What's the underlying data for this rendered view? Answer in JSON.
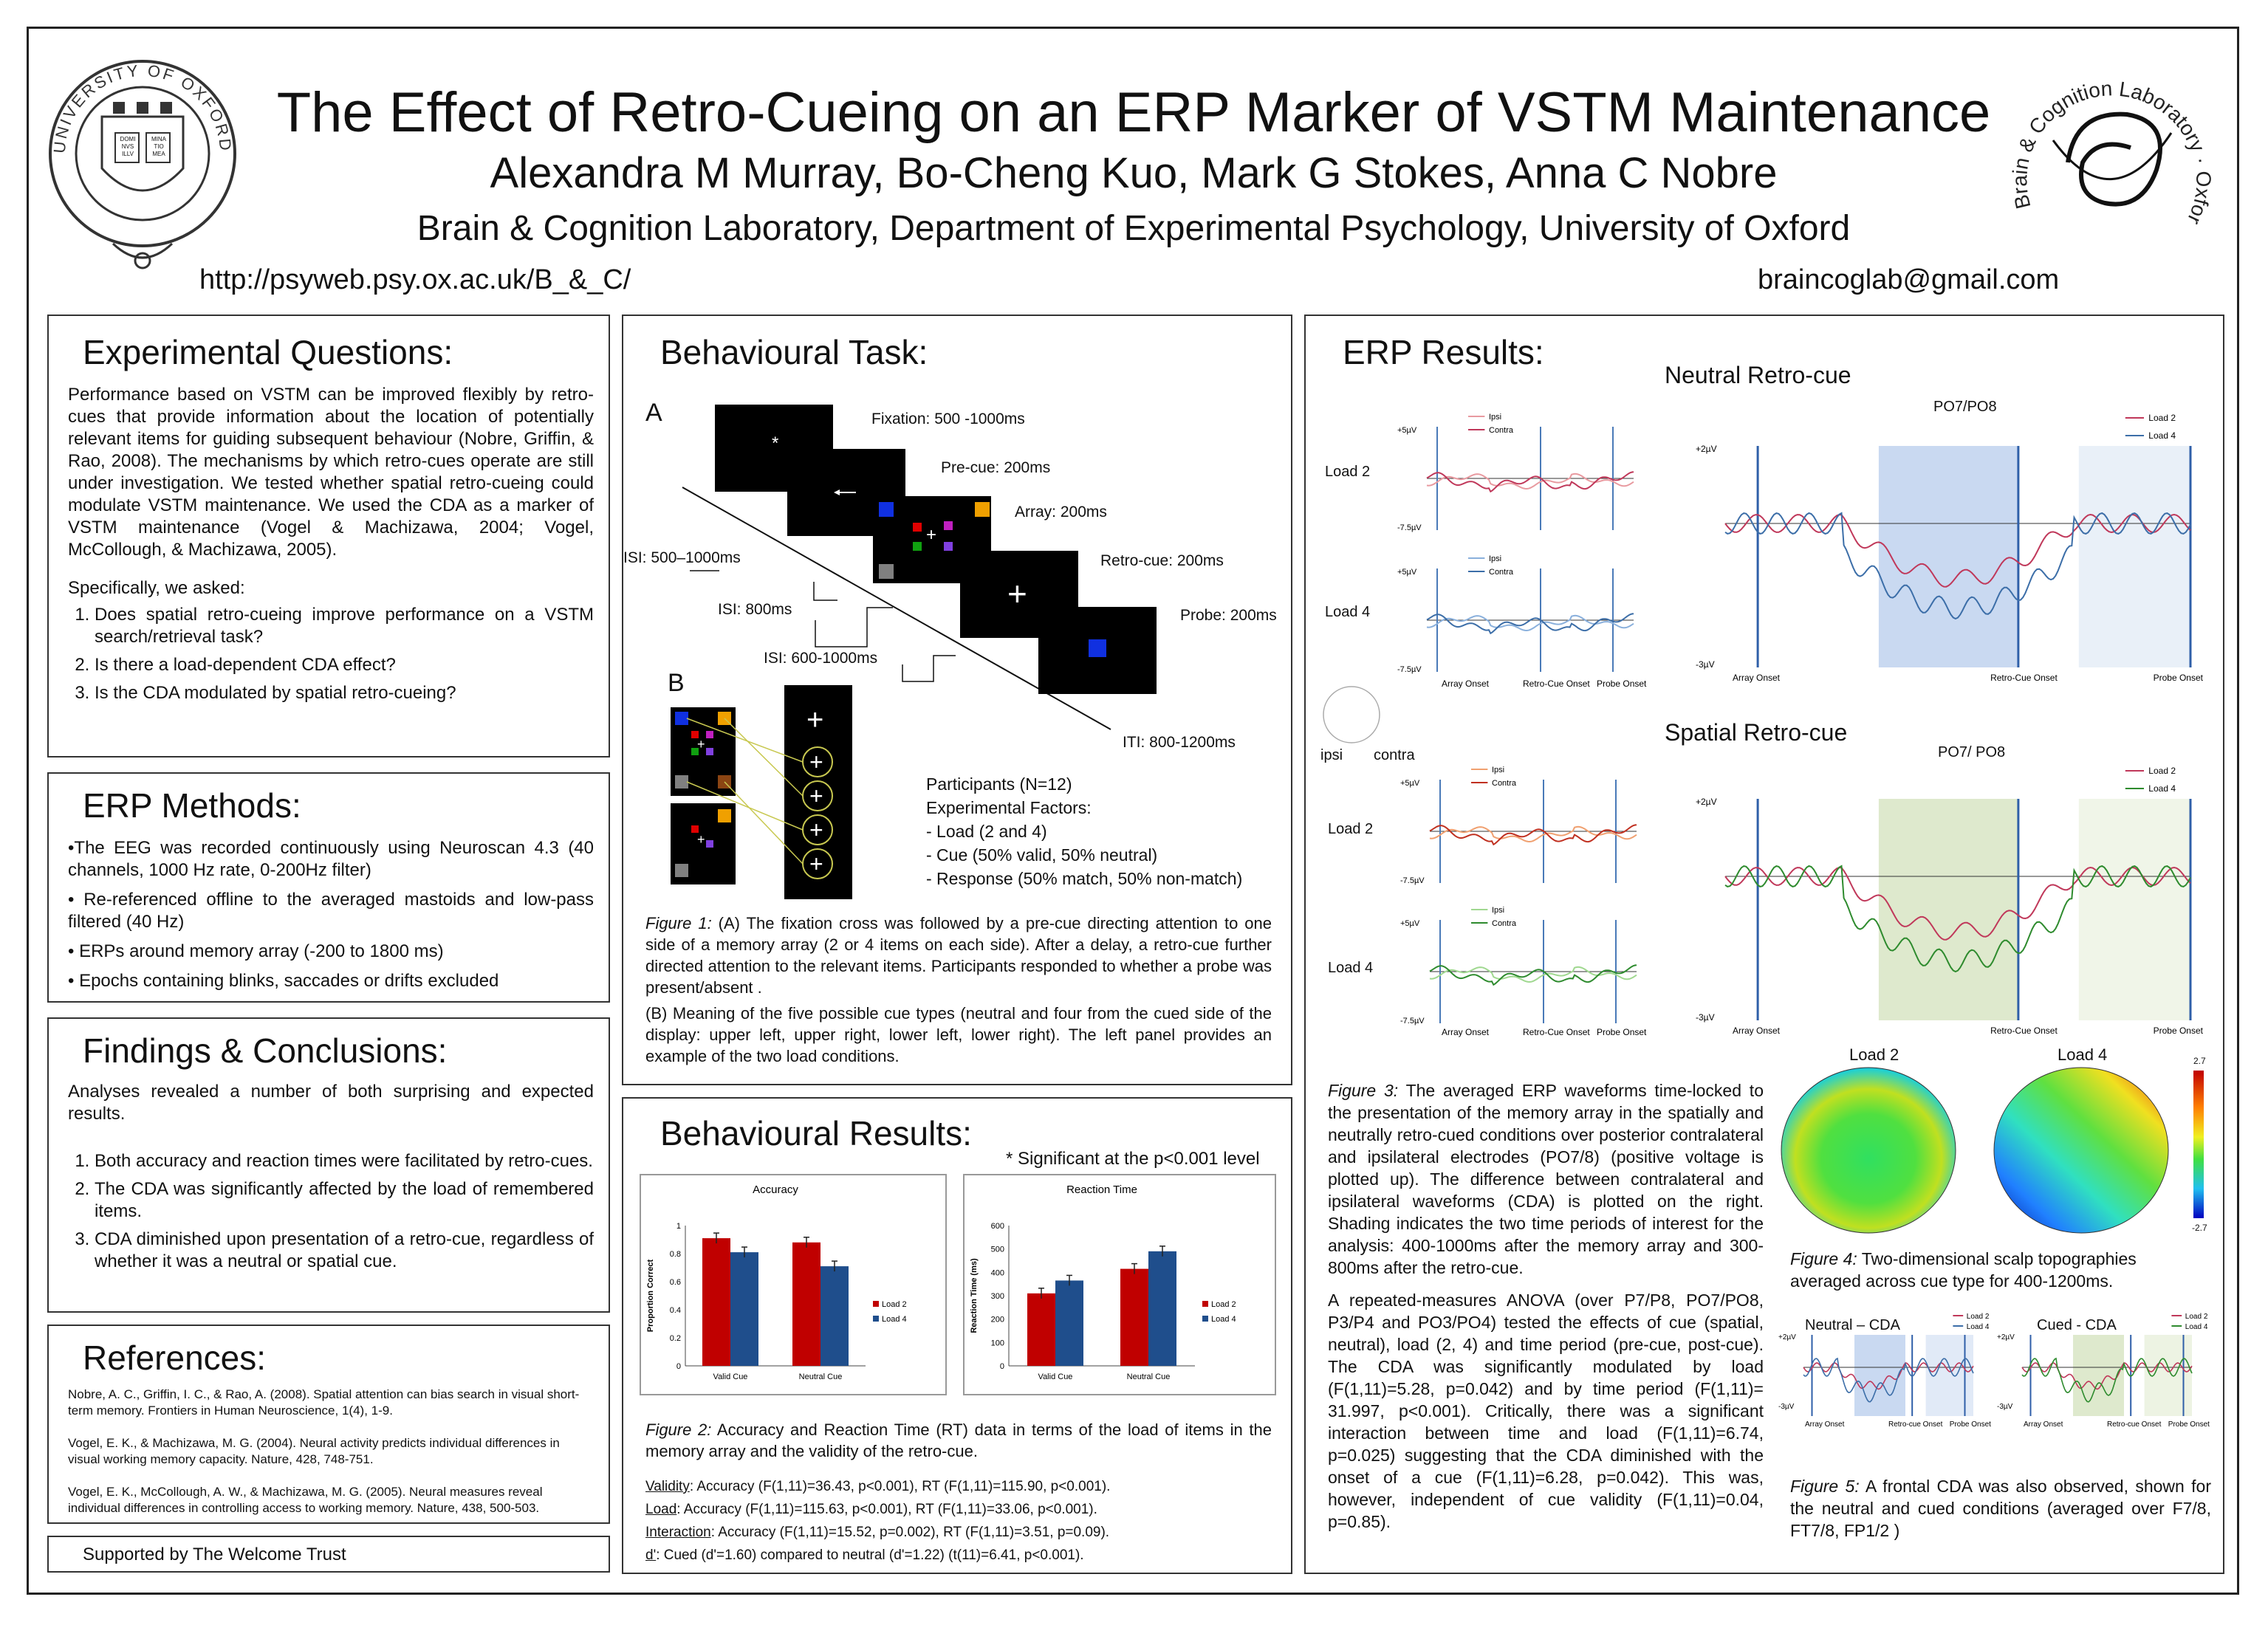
{
  "header": {
    "title": "The Effect of Retro-Cueing on an ERP Marker of VSTM Maintenance",
    "authors": "Alexandra M Murray, Bo-Cheng Kuo, Mark G Stokes, Anna C Nobre",
    "affiliation": "Brain & Cognition Laboratory, Department of Experimental Psychology, University of Oxford",
    "url": "http://psyweb.psy.ox.ac.uk/B_&_C/",
    "email": "braincoglab@gmail.com",
    "oxford_seal_text": "UNIVERSITY OF OXFORD",
    "oxford_book_left": "DOMI NVS ILLV",
    "oxford_book_right": "MINA TIO MEA",
    "lab_logo_text": "Brain & Cognition Laboratory · Oxford University"
  },
  "experimental_questions": {
    "title": "Experimental Questions:",
    "body": "Performance based on VSTM can be improved flexibly by retro-cues that provide information about the location of potentially relevant items for guiding subsequent behaviour (Nobre, Griffin, & Rao, 2008). The mechanisms by which retro-cues operate are still under investigation. We tested whether spatial retro-cueing could modulate VSTM maintenance. We used the CDA as a marker of VSTM maintenance (Vogel & Machizawa, 2004; Vogel, McCollough, & Machizawa, 2005).",
    "asked": "Specifically, we asked:",
    "questions": [
      "Does spatial retro-cueing improve performance on a VSTM search/retrieval task?",
      "Is there a load-dependent CDA effect?",
      "Is the CDA modulated by spatial retro-cueing?"
    ]
  },
  "erp_methods": {
    "title": "ERP Methods:",
    "items": [
      "•The EEG was recorded continuously using Neuroscan 4.3 (40 channels, 1000 Hz rate, 0-200Hz filter)",
      "• Re-referenced offline to the averaged mastoids and low-pass filtered (40 Hz)",
      "• ERPs around memory array (-200 to 1800 ms)",
      "• Epochs containing blinks, saccades or drifts excluded"
    ]
  },
  "findings": {
    "title": "Findings & Conclusions:",
    "intro": "Analyses revealed a number of both surprising and expected results.",
    "items": [
      "Both accuracy and reaction times were facilitated by retro-cues.",
      "The CDA was significantly affected by the load of remembered items.",
      "CDA diminished upon presentation of a retro-cue, regardless of whether it was a neutral or spatial cue."
    ]
  },
  "references": {
    "title": "References:",
    "items": [
      "Nobre, A. C., Griffin, I. C., & Rao, A. (2008). Spatial attention can bias search in visual short-term memory. Frontiers in Human Neuroscience, 1(4), 1-9.",
      "Vogel, E. K., & Machizawa, M. G. (2004). Neural activity predicts individual differences in visual working memory capacity. Nature, 428, 748-751.",
      "Vogel, E. K., McCollough, A. W., & Machizawa, M. G. (2005). Neural measures reveal individual differences in controlling access to working memory. Nature, 438, 500-503."
    ]
  },
  "support": "Supported by The Welcome Trust",
  "behavioural_task": {
    "title": "Behavioural Task:",
    "label_a": "A",
    "label_b": "B",
    "fixation": "Fixation: 500 -1000ms",
    "precue": "Pre-cue: 200ms",
    "array": "Array: 200ms",
    "retrocue": "Retro-cue: 200ms",
    "probe": "Probe: 200ms",
    "isi1": "ISI: 500–1000ms",
    "isi2": "ISI: 800ms",
    "isi3": "ISI: 600-1000ms",
    "iti": "ITI: 800-1200ms",
    "participants": "Participants (N=12)",
    "factors": "Experimental Factors:",
    "factor_items": [
      "- Load (2 and 4)",
      "- Cue (50% valid, 50% neutral)",
      "- Response (50% match, 50% non-match)"
    ],
    "caption_label": "Figure 1:",
    "caption_a": "(A) The fixation cross was followed by a pre-cue directing attention to one side of a memory array (2 or 4 items on each side). After a delay, a retro-cue further directed attention to the relevant items. Participants responded to whether a probe was present/absent .",
    "caption_b": "(B) Meaning of the five possible cue types (neutral and four from the cued side of the display: upper left, upper right, lower left, lower right). The left panel provides an example of the two load conditions."
  },
  "behavioural_results": {
    "title": "Behavioural Results:",
    "sig_note": "* Significant at the p<0.001 level",
    "caption_label": "Figure 2:",
    "caption": "Accuracy and Reaction Time (RT) data in terms of the load of items in the memory array and the validity of the retro-cue.",
    "stats": [
      {
        "label": "Validity",
        "text": ": Accuracy (F(1,11)=36.43, p<0.001), RT (F(1,11)=115.90, p<0.001)."
      },
      {
        "label": "Load",
        "text": ": Accuracy (F(1,11)=115.63, p<0.001), RT (F(1,11)=33.06, p<0.001)."
      },
      {
        "label": "Interaction",
        "text": ": Accuracy (F(1,11)=15.52, p=0.002), RT (F(1,11)=3.51, p=0.09)."
      },
      {
        "label": "d'",
        "text": ": Cued (d'=1.60) compared to neutral (d'=1.22) (t(11)=6.41, p<0.001)."
      }
    ]
  },
  "chart_data": [
    {
      "type": "bar",
      "title": "Accuracy",
      "ylabel": "Proportion Correct",
      "categories": [
        "Valid Cue",
        "Neutral Cue"
      ],
      "series": [
        {
          "name": "Load 2",
          "values": [
            0.91,
            0.88
          ]
        },
        {
          "name": "Load 4",
          "values": [
            0.81,
            0.71
          ]
        }
      ],
      "ylim": [
        0,
        1
      ],
      "yticks": [
        "0",
        "0.2",
        "0.4",
        "0.6",
        "0.8",
        "1"
      ],
      "colors": [
        "#c00000",
        "#1f4e8c"
      ]
    },
    {
      "type": "bar",
      "title": "Reaction Time",
      "ylabel": "Reaction Time (ms)",
      "categories": [
        "Valid Cue",
        "Neutral Cue"
      ],
      "series": [
        {
          "name": "Load 2",
          "values": [
            310,
            415
          ]
        },
        {
          "name": "Load 4",
          "values": [
            365,
            490
          ]
        }
      ],
      "ylim": [
        0,
        600
      ],
      "yticks": [
        "0",
        "100",
        "200",
        "300",
        "400",
        "500",
        "600"
      ],
      "colors": [
        "#c00000",
        "#1f4e8c"
      ]
    }
  ],
  "erp_results": {
    "title": "ERP Results:",
    "neutral_title": "Neutral Retro-cue",
    "spatial_title": "Spatial Retro-cue",
    "po_neutral": "PO7/PO8",
    "po_spatial": "PO7/ PO8",
    "load2": "Load 2",
    "load4": "Load 4",
    "ipsi": "Ipsi",
    "contra": "Contra",
    "ipsi_head": "ipsi",
    "contra_head": "contra",
    "y_pos5": "+5µV",
    "y_neg75": "-7.5µV",
    "y_pos2": "+2µV",
    "y_neg3": "-3µV",
    "array_onset": "Array Onset",
    "retro_onset": "Retro-Cue Onset",
    "probe_onset": "Probe Onset",
    "fig3_label": "Figure 3:",
    "fig3_caption": "The averaged ERP waveforms time-locked to the presentation of the memory array in the spatially and neutrally retro-cued conditions over posterior contralateral and ipsilateral electrodes (PO7/8) (positive voltage is plotted up). The difference between contralateral and ipsilateral waveforms (CDA) is plotted on the right. Shading indicates the two time periods of interest for the analysis: 400-1000ms after the memory array and 300-800ms after the retro-cue.",
    "anova": "A repeated-measures ANOVA (over P7/P8, PO7/PO8, P3/P4 and PO3/PO4) tested the effects of cue (spatial, neutral), load (2, 4) and time period (pre-cue, post-cue). The CDA was significantly modulated by load (F(1,11)=5.28, p=0.042) and by time period (F(1,11)= 31.997, p<0.001). Critically, there was a significant interaction between time and load (F(1,11)=6.74, p=0.025) suggesting that the CDA diminished with the onset of a cue (F(1,11)=6.28, p=0.042). This was, however, independent of cue validity (F(1,11)=0.04, p=0.85).",
    "topo_scale_max": "2.7",
    "topo_scale_min": "-2.7",
    "fig4_label": "Figure 4:",
    "fig4_caption": "Two-dimensional scalp topographies averaged across cue type for 400-1200ms.",
    "neutral_cda": "Neutral – CDA",
    "cued_cda": "Cued - CDA",
    "y_pos2b": "+2µV",
    "y_neg3b": "-3µV",
    "onset_array": "Array Onset",
    "onset_retro": "Retro-cue Onset",
    "onset_probe": "Probe Onset",
    "fig5_label": "Figure 5:",
    "fig5_caption": "A frontal CDA was also observed, shown for the neutral and cued conditions (averaged over F7/8, FT7/8, FP1/2 )"
  },
  "colors": {
    "load2": "#c0385a",
    "load4_neutral": "#3c6ea8",
    "load4_spatial": "#2e8b2e",
    "neutral_shade": "#bcd0ee",
    "spatial_shade": "#d6e4c0",
    "bar_red": "#c00000",
    "bar_blue": "#1f4e8c"
  }
}
